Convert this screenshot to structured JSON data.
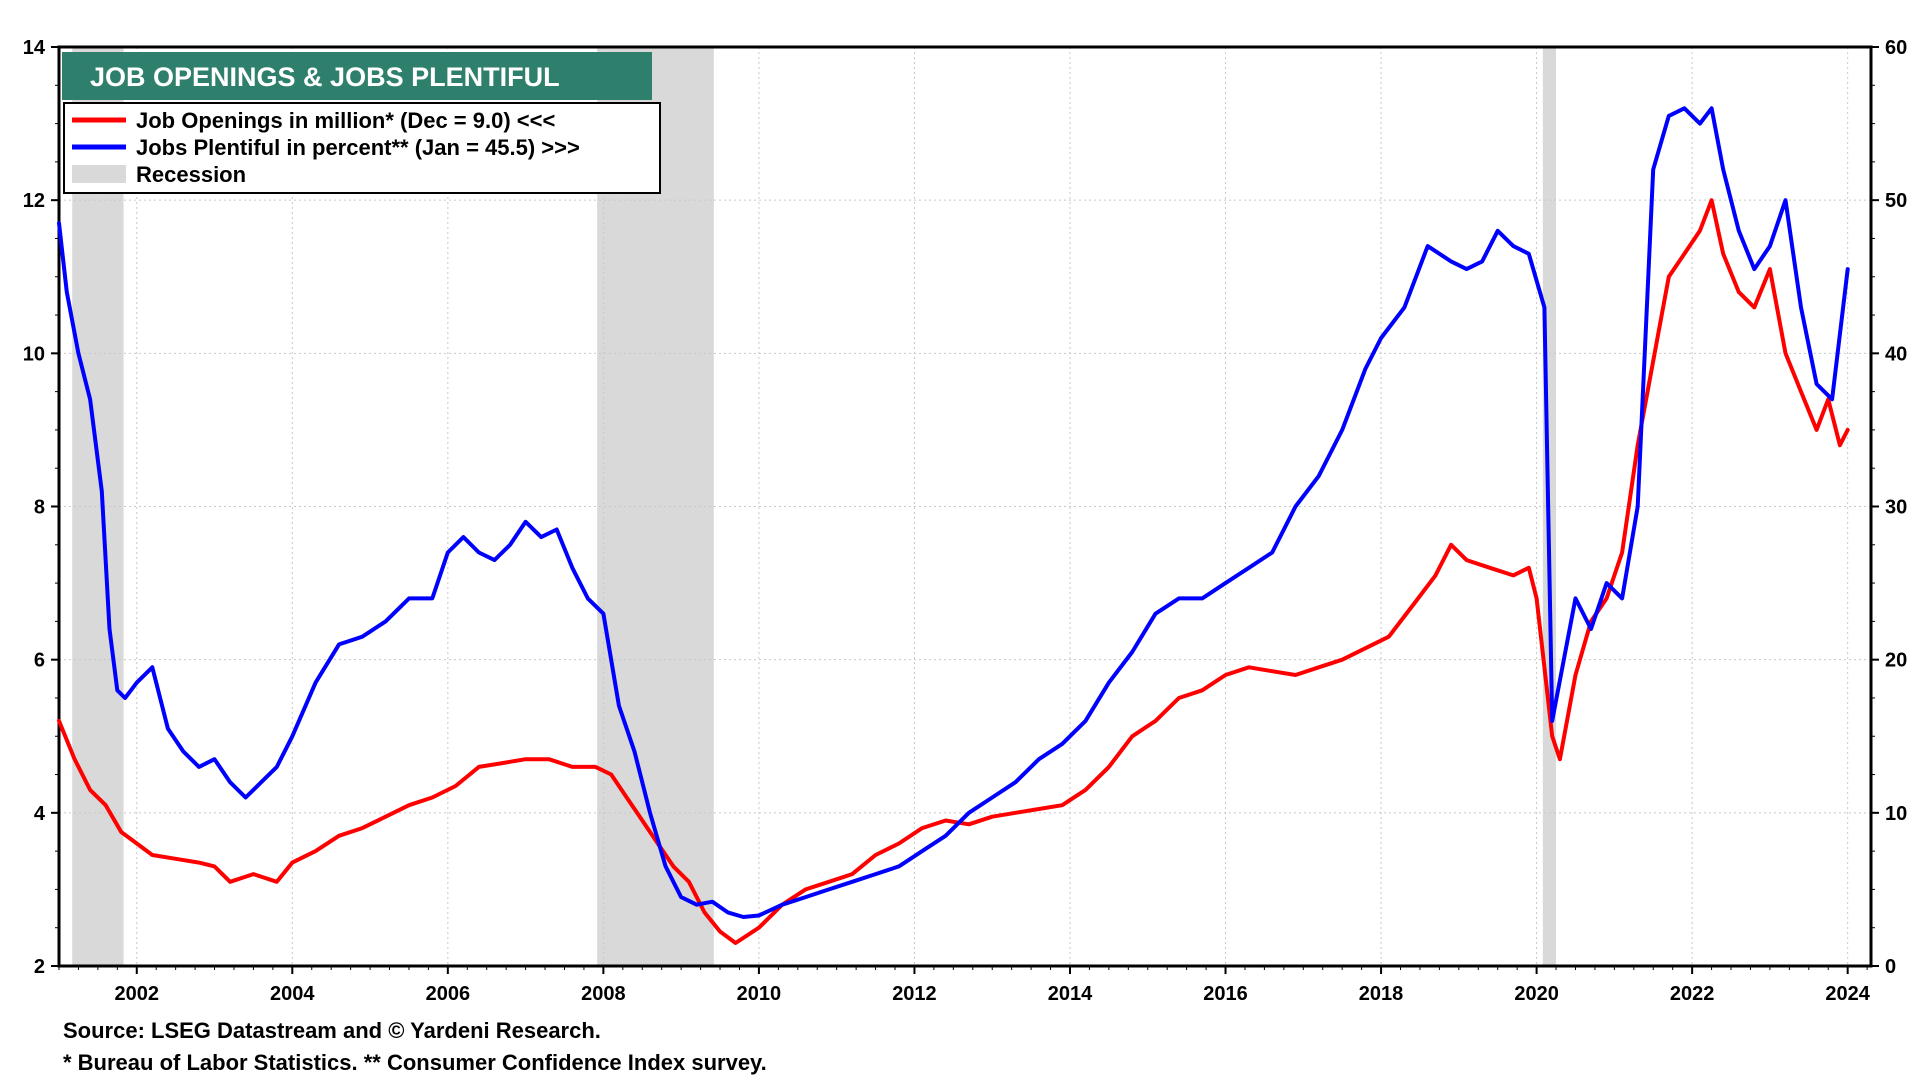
{
  "chart_data": {
    "type": "line",
    "title": "JOB OPENINGS & JOBS PLENTIFUL",
    "x_range": [
      2001.0,
      2024.3
    ],
    "x_ticks": [
      "2002",
      "2004",
      "2006",
      "2008",
      "2010",
      "2012",
      "2014",
      "2016",
      "2018",
      "2020",
      "2022",
      "2024"
    ],
    "y_left": {
      "range": [
        2,
        14
      ],
      "ticks": [
        "2",
        "4",
        "6",
        "8",
        "10",
        "12",
        "14"
      ]
    },
    "y_right": {
      "range": [
        0,
        60
      ],
      "ticks": [
        "0",
        "10",
        "20",
        "30",
        "40",
        "50",
        "60"
      ]
    },
    "grid": true,
    "legend_placement": "top-left",
    "legend": [
      {
        "label": "Job Openings in million* (Dec = 9.0) <<<",
        "color": "#ff0000"
      },
      {
        "label": "Jobs Plentiful in percent** (Jan = 45.5) >>>",
        "color": "#0000ff"
      },
      {
        "label": "Recession",
        "color": "#d9d9d9"
      }
    ],
    "recessions": [
      {
        "start": 2001.17,
        "end": 2001.83
      },
      {
        "start": 2007.92,
        "end": 2009.42
      },
      {
        "start": 2020.08,
        "end": 2020.25
      }
    ],
    "series": [
      {
        "name": "Job Openings in million*",
        "axis": "left",
        "color": "#ff0000",
        "x": [
          2001.0,
          2001.2,
          2001.4,
          2001.6,
          2001.8,
          2002.0,
          2002.2,
          2002.5,
          2002.8,
          2003.0,
          2003.2,
          2003.5,
          2003.8,
          2004.0,
          2004.3,
          2004.6,
          2004.9,
          2005.2,
          2005.5,
          2005.8,
          2006.1,
          2006.4,
          2006.7,
          2007.0,
          2007.3,
          2007.6,
          2007.9,
          2008.1,
          2008.3,
          2008.5,
          2008.7,
          2008.9,
          2009.1,
          2009.3,
          2009.5,
          2009.7,
          2010.0,
          2010.3,
          2010.6,
          2010.9,
          2011.2,
          2011.5,
          2011.8,
          2012.1,
          2012.4,
          2012.7,
          2013.0,
          2013.3,
          2013.6,
          2013.9,
          2014.2,
          2014.5,
          2014.8,
          2015.1,
          2015.4,
          2015.7,
          2016.0,
          2016.3,
          2016.6,
          2016.9,
          2017.2,
          2017.5,
          2017.8,
          2018.1,
          2018.4,
          2018.7,
          2018.9,
          2019.1,
          2019.4,
          2019.7,
          2019.9,
          2020.0,
          2020.2,
          2020.3,
          2020.5,
          2020.7,
          2020.9,
          2021.1,
          2021.3,
          2021.5,
          2021.7,
          2021.9,
          2022.1,
          2022.25,
          2022.4,
          2022.6,
          2022.8,
          2023.0,
          2023.2,
          2023.4,
          2023.6,
          2023.75,
          2023.9,
          2024.0
        ],
        "values": [
          5.2,
          4.7,
          4.3,
          4.1,
          3.75,
          3.6,
          3.45,
          3.4,
          3.35,
          3.3,
          3.1,
          3.2,
          3.1,
          3.35,
          3.5,
          3.7,
          3.8,
          3.95,
          4.1,
          4.2,
          4.35,
          4.6,
          4.65,
          4.7,
          4.7,
          4.6,
          4.6,
          4.5,
          4.2,
          3.9,
          3.6,
          3.3,
          3.1,
          2.7,
          2.45,
          2.3,
          2.5,
          2.8,
          3.0,
          3.1,
          3.2,
          3.45,
          3.6,
          3.8,
          3.9,
          3.85,
          3.95,
          4.0,
          4.05,
          4.1,
          4.3,
          4.6,
          5.0,
          5.2,
          5.5,
          5.6,
          5.8,
          5.9,
          5.85,
          5.8,
          5.9,
          6.0,
          6.15,
          6.3,
          6.7,
          7.1,
          7.5,
          7.3,
          7.2,
          7.1,
          7.2,
          6.8,
          5.0,
          4.7,
          5.8,
          6.5,
          6.8,
          7.4,
          8.8,
          9.9,
          11.0,
          11.3,
          11.6,
          12.0,
          11.3,
          10.8,
          10.6,
          11.1,
          10.0,
          9.5,
          9.0,
          9.4,
          8.8,
          9.0
        ]
      },
      {
        "name": "Jobs Plentiful in percent**",
        "axis": "right",
        "color": "#0000ff",
        "x": [
          2001.0,
          2001.1,
          2001.25,
          2001.4,
          2001.55,
          2001.65,
          2001.75,
          2001.85,
          2002.0,
          2002.2,
          2002.4,
          2002.6,
          2002.8,
          2003.0,
          2003.2,
          2003.4,
          2003.6,
          2003.8,
          2004.0,
          2004.3,
          2004.6,
          2004.9,
          2005.2,
          2005.5,
          2005.8,
          2006.0,
          2006.2,
          2006.4,
          2006.6,
          2006.8,
          2007.0,
          2007.2,
          2007.4,
          2007.6,
          2007.8,
          2008.0,
          2008.2,
          2008.4,
          2008.6,
          2008.8,
          2009.0,
          2009.2,
          2009.4,
          2009.6,
          2009.8,
          2010.0,
          2010.3,
          2010.6,
          2010.9,
          2011.2,
          2011.5,
          2011.8,
          2012.1,
          2012.4,
          2012.7,
          2013.0,
          2013.3,
          2013.6,
          2013.9,
          2014.2,
          2014.5,
          2014.8,
          2015.1,
          2015.4,
          2015.7,
          2016.0,
          2016.3,
          2016.6,
          2016.9,
          2017.2,
          2017.5,
          2017.8,
          2018.0,
          2018.3,
          2018.6,
          2018.9,
          2019.1,
          2019.3,
          2019.5,
          2019.7,
          2019.9,
          2020.1,
          2020.2,
          2020.35,
          2020.5,
          2020.7,
          2020.9,
          2021.1,
          2021.3,
          2021.5,
          2021.7,
          2021.9,
          2022.1,
          2022.25,
          2022.4,
          2022.6,
          2022.8,
          2023.0,
          2023.2,
          2023.4,
          2023.6,
          2023.8,
          2024.0
        ],
        "values": [
          48.5,
          44.0,
          40.0,
          37.0,
          31.0,
          22.0,
          18.0,
          17.5,
          18.5,
          19.5,
          15.5,
          14.0,
          13.0,
          13.5,
          12.0,
          11.0,
          12.0,
          13.0,
          15.0,
          18.5,
          21.0,
          21.5,
          22.5,
          24.0,
          24.0,
          27.0,
          28.0,
          27.0,
          26.5,
          27.5,
          29.0,
          28.0,
          28.5,
          26.0,
          24.0,
          23.0,
          17.0,
          14.0,
          10.0,
          6.5,
          4.5,
          4.0,
          4.2,
          3.5,
          3.2,
          3.3,
          4.0,
          4.5,
          5.0,
          5.5,
          6.0,
          6.5,
          7.5,
          8.5,
          10.0,
          11.0,
          12.0,
          13.5,
          14.5,
          16.0,
          18.5,
          20.5,
          23.0,
          24.0,
          24.0,
          25.0,
          26.0,
          27.0,
          30.0,
          32.0,
          35.0,
          39.0,
          41.0,
          43.0,
          47.0,
          46.0,
          45.5,
          46.0,
          48.0,
          47.0,
          46.5,
          43.0,
          16.0,
          20.0,
          24.0,
          22.0,
          25.0,
          24.0,
          30.0,
          52.0,
          55.5,
          56.0,
          55.0,
          56.0,
          52.0,
          48.0,
          45.5,
          47.0,
          50.0,
          43.0,
          38.0,
          37.0,
          45.5
        ]
      }
    ]
  },
  "notes": {
    "source": "Source: LSEG Datastream and © Yardeni Research.",
    "footnote": "* Bureau of Labor Statistics.  ** Consumer Confidence Index survey."
  }
}
